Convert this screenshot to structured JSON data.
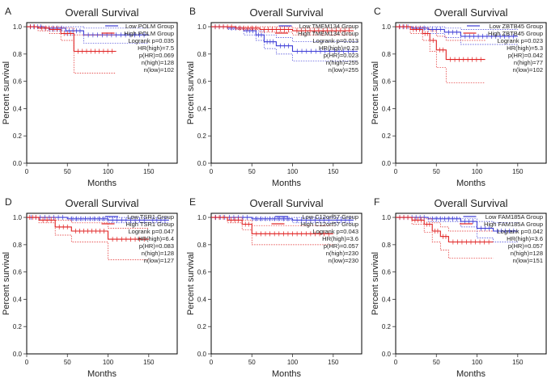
{
  "colors": {
    "low": "#3b3bd6",
    "high": "#e02020",
    "axis": "#333333",
    "text": "#222222",
    "frame": "#000000"
  },
  "chart_data": [
    {
      "panel_letter": "A",
      "type": "line",
      "title": "Overall Survival",
      "xlabel": "Months",
      "ylabel": "Percent survival",
      "xlim": [
        0,
        185
      ],
      "ylim": [
        0,
        1.03
      ],
      "xticks": [
        0,
        50,
        100,
        150
      ],
      "yticks": [
        0.0,
        0.2,
        0.4,
        0.6,
        0.8,
        1.0
      ],
      "ytick_labels": [
        "0.0",
        "0.2",
        "0.4",
        "0.6",
        "0.8",
        "1.0"
      ],
      "legend": {
        "low": "Low POLM Group",
        "high": "High POLM Group"
      },
      "stats": [
        "Logrank p=0.035",
        "HR(high)=7.5",
        "p(HR)=0.069",
        "n(high)=128",
        "n(low)=102"
      ],
      "series": [
        {
          "name": "Low POLM Group",
          "color_key": "low",
          "x": [
            0,
            22,
            48,
            70,
            150
          ],
          "y": [
            1.0,
            0.99,
            0.97,
            0.94,
            0.94
          ],
          "ci_upper_y": [
            1.0,
            1.0,
            1.0,
            0.99,
            0.99
          ],
          "ci_lower_y": [
            1.0,
            0.97,
            0.94,
            0.88,
            0.88
          ]
        },
        {
          "name": "High POLM Group",
          "color_key": "high",
          "x": [
            0,
            14,
            28,
            42,
            58,
            110
          ],
          "y": [
            1.0,
            0.99,
            0.98,
            0.95,
            0.82,
            0.82
          ],
          "ci_upper_y": [
            1.0,
            1.0,
            1.0,
            0.99,
            0.94,
            0.94
          ],
          "ci_lower_y": [
            1.0,
            0.97,
            0.95,
            0.9,
            0.66,
            0.66
          ]
        }
      ]
    },
    {
      "panel_letter": "B",
      "type": "line",
      "title": "Overall Survival",
      "xlabel": "Months",
      "ylabel": "Percent survival",
      "xlim": [
        0,
        185
      ],
      "ylim": [
        0,
        1.03
      ],
      "xticks": [
        0,
        50,
        100,
        150
      ],
      "yticks": [
        0.0,
        0.2,
        0.4,
        0.6,
        0.8,
        1.0
      ],
      "ytick_labels": [
        "0.0",
        "0.2",
        "0.4",
        "0.6",
        "0.8",
        "1.0"
      ],
      "legend": {
        "low": "Low TMEM134 Group",
        "high": "High TMEM134 Group"
      },
      "stats": [
        "Logrank p=0.013",
        "HR(high)=0.23",
        "p(HR)=0.023",
        "n(high)=255",
        "n(low)=255"
      ],
      "series": [
        {
          "name": "Low TMEM134 Group",
          "color_key": "low",
          "x": [
            0,
            20,
            40,
            55,
            65,
            80,
            100,
            180
          ],
          "y": [
            1.0,
            0.99,
            0.97,
            0.94,
            0.89,
            0.86,
            0.82,
            0.82
          ],
          "ci_upper_y": [
            1.0,
            1.0,
            0.99,
            0.97,
            0.94,
            0.92,
            0.89,
            0.89
          ],
          "ci_lower_y": [
            1.0,
            0.98,
            0.94,
            0.9,
            0.84,
            0.8,
            0.75,
            0.75
          ]
        },
        {
          "name": "High TMEM134 Group",
          "color_key": "high",
          "x": [
            0,
            30,
            60,
            100,
            175
          ],
          "y": [
            1.0,
            0.99,
            0.98,
            0.97,
            0.97
          ],
          "ci_upper_y": [
            1.0,
            1.0,
            1.0,
            0.99,
            0.99
          ],
          "ci_lower_y": [
            1.0,
            0.98,
            0.96,
            0.94,
            0.94
          ]
        }
      ]
    },
    {
      "panel_letter": "C",
      "type": "line",
      "title": "Overall Survival",
      "xlabel": "Months",
      "ylabel": "Percent survival",
      "xlim": [
        0,
        185
      ],
      "ylim": [
        0,
        1.03
      ],
      "xticks": [
        0,
        50,
        100,
        150
      ],
      "yticks": [
        0.0,
        0.2,
        0.4,
        0.6,
        0.8,
        1.0
      ],
      "ytick_labels": [
        "0.0",
        "0.2",
        "0.4",
        "0.6",
        "0.8",
        "1.0"
      ],
      "legend": {
        "low": "Low ZBTB45 Group",
        "high": "High ZBTB45 Group"
      },
      "stats": [
        "Logrank p=0.023",
        "HR(high)=5.3",
        "p(HR)=0.042",
        "n(high)=77",
        "n(low)=102"
      ],
      "series": [
        {
          "name": "Low ZBTB45 Group",
          "color_key": "low",
          "x": [
            0,
            20,
            40,
            60,
            80,
            150
          ],
          "y": [
            1.0,
            0.99,
            0.98,
            0.96,
            0.93,
            0.93
          ],
          "ci_upper_y": [
            1.0,
            1.0,
            1.0,
            0.99,
            0.98,
            0.98
          ],
          "ci_lower_y": [
            1.0,
            0.98,
            0.95,
            0.92,
            0.87,
            0.87
          ]
        },
        {
          "name": "High ZBTB45 Group",
          "color_key": "high",
          "x": [
            0,
            18,
            33,
            42,
            50,
            62,
            110
          ],
          "y": [
            1.0,
            0.98,
            0.95,
            0.9,
            0.83,
            0.76,
            0.76
          ],
          "ci_upper_y": [
            1.0,
            1.0,
            0.99,
            0.97,
            0.93,
            0.9,
            0.9
          ],
          "ci_lower_y": [
            1.0,
            0.95,
            0.9,
            0.82,
            0.7,
            0.59,
            0.59
          ]
        }
      ]
    },
    {
      "panel_letter": "D",
      "type": "line",
      "title": "Overall Survival",
      "xlabel": "Months",
      "ylabel": "Percent survival",
      "xlim": [
        0,
        185
      ],
      "ylim": [
        0,
        1.03
      ],
      "xticks": [
        0,
        50,
        100,
        150
      ],
      "yticks": [
        0.0,
        0.2,
        0.4,
        0.6,
        0.8,
        1.0
      ],
      "ytick_labels": [
        "0.0",
        "0.2",
        "0.4",
        "0.6",
        "0.8",
        "1.0"
      ],
      "legend": {
        "low": "Low TSR1 Group",
        "high": "High TSR1 Group"
      },
      "stats": [
        "Logrank p=0.047",
        "HR(high)=6.4",
        "p(HR)=0.083",
        "n(high)=128",
        "n(low)=127"
      ],
      "series": [
        {
          "name": "Low TSR1 Group",
          "color_key": "low",
          "x": [
            0,
            50,
            100,
            150,
            175
          ],
          "y": [
            1.0,
            0.99,
            0.98,
            0.98,
            0.98
          ],
          "ci_upper_y": [
            1.0,
            1.0,
            1.0,
            1.0,
            1.0
          ],
          "ci_lower_y": [
            1.0,
            0.98,
            0.96,
            0.96,
            0.96
          ]
        },
        {
          "name": "High TSR1 Group",
          "color_key": "high",
          "x": [
            0,
            15,
            35,
            55,
            100,
            150
          ],
          "y": [
            1.0,
            0.98,
            0.93,
            0.9,
            0.84,
            0.84
          ],
          "ci_upper_y": [
            1.0,
            1.0,
            0.98,
            0.96,
            0.92,
            0.92
          ],
          "ci_lower_y": [
            1.0,
            0.96,
            0.87,
            0.82,
            0.69,
            0.69
          ]
        }
      ]
    },
    {
      "panel_letter": "E",
      "type": "line",
      "title": "Overall Survival",
      "xlabel": "Months",
      "ylabel": "Percent survival",
      "xlim": [
        0,
        185
      ],
      "ylim": [
        0,
        1.03
      ],
      "xticks": [
        0,
        50,
        100,
        150
      ],
      "yticks": [
        0.0,
        0.2,
        0.4,
        0.6,
        0.8,
        1.0
      ],
      "ytick_labels": [
        "0.0",
        "0.2",
        "0.4",
        "0.6",
        "0.8",
        "1.0"
      ],
      "legend": {
        "low": "Low C12orf57 Group",
        "high": "High C12orf57 Group"
      },
      "stats": [
        "Logrank p=0.043",
        "HR(high)=3.6",
        "p(HR)=0.057",
        "n(high)=230",
        "n(low)=230"
      ],
      "series": [
        {
          "name": "Low C12orf57 Group",
          "color_key": "low",
          "x": [
            0,
            50,
            100,
            150,
            175
          ],
          "y": [
            1.0,
            0.99,
            0.98,
            0.98,
            0.98
          ],
          "ci_upper_y": [
            1.0,
            1.0,
            1.0,
            1.0,
            1.0
          ],
          "ci_lower_y": [
            1.0,
            0.98,
            0.96,
            0.96,
            0.96
          ]
        },
        {
          "name": "High C12orf57 Group",
          "color_key": "high",
          "x": [
            0,
            20,
            38,
            50,
            150
          ],
          "y": [
            1.0,
            0.98,
            0.95,
            0.88,
            0.88
          ],
          "ci_upper_y": [
            1.0,
            1.0,
            0.98,
            0.94,
            0.94
          ],
          "ci_lower_y": [
            1.0,
            0.96,
            0.91,
            0.8,
            0.8
          ]
        }
      ]
    },
    {
      "panel_letter": "F",
      "type": "line",
      "title": "Overall Survival",
      "xlabel": "Months",
      "ylabel": "Percent survival",
      "xlim": [
        0,
        185
      ],
      "ylim": [
        0,
        1.03
      ],
      "xticks": [
        0,
        50,
        100,
        150
      ],
      "yticks": [
        0.0,
        0.2,
        0.4,
        0.6,
        0.8,
        1.0
      ],
      "ytick_labels": [
        "0.0",
        "0.2",
        "0.4",
        "0.6",
        "0.8",
        "1.0"
      ],
      "legend": {
        "low": "Low FAM185A Group",
        "high": "High FAM185A Group"
      },
      "stats": [
        "Logrank p=0.042",
        "HR(high)=3.6",
        "p(HR)=0.057",
        "n(high)=128",
        "n(low)=151"
      ],
      "series": [
        {
          "name": "Low FAM185A Group",
          "color_key": "low",
          "x": [
            0,
            40,
            80,
            100,
            120,
            150
          ],
          "y": [
            1.0,
            0.99,
            0.97,
            0.92,
            0.9,
            0.9
          ],
          "ci_upper_y": [
            1.0,
            1.0,
            0.99,
            0.97,
            0.96,
            0.96
          ],
          "ci_lower_y": [
            1.0,
            0.97,
            0.93,
            0.85,
            0.82,
            0.82
          ]
        },
        {
          "name": "High FAM185A Group",
          "color_key": "high",
          "x": [
            0,
            20,
            35,
            45,
            55,
            65,
            120
          ],
          "y": [
            1.0,
            0.98,
            0.95,
            0.9,
            0.86,
            0.82,
            0.82
          ],
          "ci_upper_y": [
            1.0,
            1.0,
            0.99,
            0.96,
            0.93,
            0.9,
            0.9
          ],
          "ci_lower_y": [
            1.0,
            0.95,
            0.89,
            0.82,
            0.76,
            0.7,
            0.7
          ]
        }
      ]
    }
  ]
}
